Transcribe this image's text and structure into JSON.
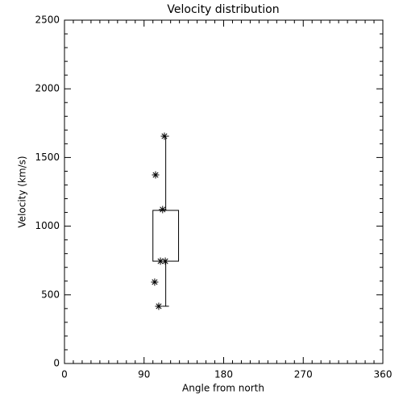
{
  "chart_data": {
    "type": "box",
    "title": "Velocity distribution",
    "x_label": "Angle from north",
    "y_label": "Velocity (km/s)",
    "xlim": [
      0,
      360
    ],
    "xticks": [
      0,
      90,
      180,
      270,
      360
    ],
    "x_minor": 9,
    "ylim": [
      0,
      2500
    ],
    "yticks": [
      0,
      500,
      1000,
      1500,
      2000,
      2500
    ],
    "y_minor": 5,
    "color": "#000000",
    "box": {
      "x_range": [
        100,
        129
      ],
      "low": 417,
      "q1": 745,
      "q3": 1115,
      "high": 1655
    },
    "points": {
      "x": [
        113,
        103,
        111,
        108.5,
        114,
        102,
        106.6
      ],
      "y": [
        1655,
        1373,
        1121,
        745,
        745,
        593,
        417
      ]
    }
  }
}
